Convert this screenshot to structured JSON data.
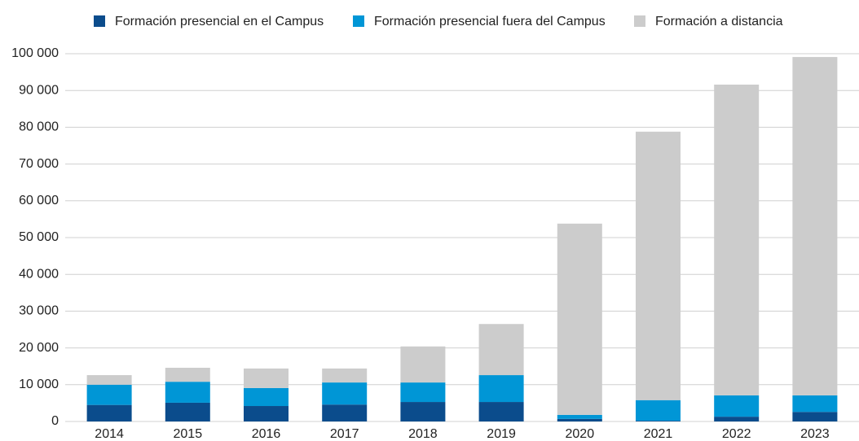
{
  "chart_data": {
    "type": "stacked_bar",
    "categories": [
      "2014",
      "2015",
      "2016",
      "2017",
      "2018",
      "2019",
      "2020",
      "2021",
      "2022",
      "2023"
    ],
    "series": [
      {
        "name": "Formación presencial en el Campus",
        "color": "#0b4c8c",
        "values": [
          4500,
          5100,
          4200,
          4600,
          5300,
          5300,
          700,
          200,
          1300,
          2600
        ]
      },
      {
        "name": "Formación presencial fuera del Campus",
        "color": "#0096d6",
        "values": [
          5500,
          5700,
          4900,
          6000,
          5300,
          7300,
          1100,
          5600,
          5800,
          4500
        ]
      },
      {
        "name": "Formación a distancia",
        "color": "#cccccc",
        "values": [
          2600,
          3800,
          5300,
          3800,
          9800,
          13900,
          52000,
          73000,
          84500,
          92000
        ]
      }
    ],
    "ylim": [
      0,
      100000
    ],
    "yticks": [
      0,
      {
        "value": 10000,
        "label": "10 000"
      },
      {
        "value": 20000,
        "label": "20 000"
      },
      {
        "value": 30000,
        "label": "30 000"
      },
      {
        "value": 40000,
        "label": "40 000"
      },
      {
        "value": 50000,
        "label": "50 000"
      },
      {
        "value": 60000,
        "label": "60 000"
      },
      {
        "value": 70000,
        "label": "70 000"
      },
      {
        "value": 80000,
        "label": "80 000"
      },
      {
        "value": 90000,
        "label": "90 000"
      },
      {
        "value": 100000,
        "label": "100 000"
      }
    ],
    "grid": true,
    "legend": "top"
  }
}
